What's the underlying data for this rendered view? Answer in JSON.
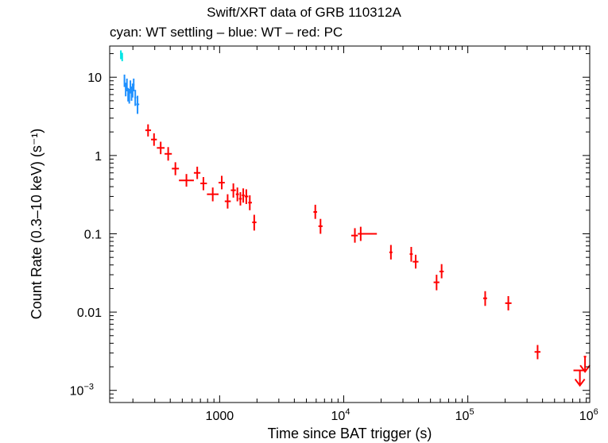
{
  "chart_data": {
    "type": "scatter",
    "title": "Swift/XRT data of GRB 110312A",
    "subtitle": "cyan: WT settling – blue: WT – red: PC",
    "xlabel": "Time since BAT trigger (s)",
    "ylabel": "Count Rate (0.3–10 keV) (s⁻¹)",
    "xscale": "log",
    "yscale": "log",
    "xlim": [
      130,
      960000
    ],
    "ylim": [
      0.0007,
      25
    ],
    "x_ticks": [
      {
        "value": 1000,
        "label": "1000",
        "sup": ""
      },
      {
        "value": 10000,
        "label": "10",
        "sup": "4"
      },
      {
        "value": 100000,
        "label": "10",
        "sup": "5"
      },
      {
        "value": 1000000,
        "label": "10",
        "sup": "6"
      }
    ],
    "y_ticks": [
      {
        "value": 0.001,
        "label": "10",
        "sup": "−3"
      },
      {
        "value": 0.01,
        "label": "0.01",
        "sup": ""
      },
      {
        "value": 0.1,
        "label": "0.1",
        "sup": ""
      },
      {
        "value": 1,
        "label": "1",
        "sup": ""
      },
      {
        "value": 10,
        "label": "10",
        "sup": ""
      }
    ],
    "series": [
      {
        "name": "WT settling",
        "color": "#00e5e5",
        "points": [
          {
            "x": 160,
            "xlo": 158,
            "xhi": 162,
            "y": 19.5,
            "ylo": 17,
            "yhi": 22
          },
          {
            "x": 164,
            "xlo": 162,
            "xhi": 166,
            "y": 18,
            "ylo": 16,
            "yhi": 20.5
          }
        ]
      },
      {
        "name": "WT",
        "color": "#1e90ff",
        "points": [
          {
            "x": 171,
            "xlo": 169,
            "xhi": 173,
            "y": 9.0,
            "ylo": 7.5,
            "yhi": 10.8
          },
          {
            "x": 175,
            "xlo": 173,
            "xhi": 177,
            "y": 7.0,
            "ylo": 5.7,
            "yhi": 8.5
          },
          {
            "x": 179,
            "xlo": 177,
            "xhi": 181,
            "y": 8.0,
            "ylo": 6.6,
            "yhi": 9.6
          },
          {
            "x": 183,
            "xlo": 181,
            "xhi": 185,
            "y": 6.0,
            "ylo": 4.9,
            "yhi": 7.3
          },
          {
            "x": 187,
            "xlo": 185,
            "xhi": 189,
            "y": 5.8,
            "ylo": 4.6,
            "yhi": 7.1
          },
          {
            "x": 191,
            "xlo": 189,
            "xhi": 193,
            "y": 7.5,
            "ylo": 6.2,
            "yhi": 9.1
          },
          {
            "x": 195,
            "xlo": 193,
            "xhi": 197,
            "y": 6.2,
            "ylo": 5.0,
            "yhi": 7.6
          },
          {
            "x": 199,
            "xlo": 197,
            "xhi": 201,
            "y": 6.8,
            "ylo": 5.5,
            "yhi": 8.3
          },
          {
            "x": 203,
            "xlo": 201,
            "xhi": 206,
            "y": 8.0,
            "ylo": 6.6,
            "yhi": 9.6
          },
          {
            "x": 209,
            "xlo": 206,
            "xhi": 213,
            "y": 5.5,
            "ylo": 4.3,
            "yhi": 6.9
          },
          {
            "x": 218,
            "xlo": 213,
            "xhi": 225,
            "y": 4.5,
            "ylo": 3.4,
            "yhi": 5.8
          }
        ]
      },
      {
        "name": "PC",
        "color": "#ff0000",
        "points": [
          {
            "x": 265,
            "xlo": 252,
            "xhi": 280,
            "y": 2.1,
            "ylo": 1.75,
            "yhi": 2.5
          },
          {
            "x": 296,
            "xlo": 280,
            "xhi": 312,
            "y": 1.6,
            "ylo": 1.33,
            "yhi": 1.92
          },
          {
            "x": 335,
            "xlo": 312,
            "xhi": 360,
            "y": 1.25,
            "ylo": 1.04,
            "yhi": 1.5
          },
          {
            "x": 385,
            "xlo": 360,
            "xhi": 412,
            "y": 1.05,
            "ylo": 0.86,
            "yhi": 1.28
          },
          {
            "x": 440,
            "xlo": 412,
            "xhi": 470,
            "y": 0.68,
            "ylo": 0.56,
            "yhi": 0.82
          },
          {
            "x": 540,
            "xlo": 470,
            "xhi": 620,
            "y": 0.48,
            "ylo": 0.4,
            "yhi": 0.58
          },
          {
            "x": 660,
            "xlo": 620,
            "xhi": 700,
            "y": 0.6,
            "ylo": 0.5,
            "yhi": 0.72
          },
          {
            "x": 740,
            "xlo": 700,
            "xhi": 790,
            "y": 0.44,
            "ylo": 0.36,
            "yhi": 0.53
          },
          {
            "x": 880,
            "xlo": 790,
            "xhi": 980,
            "y": 0.32,
            "ylo": 0.26,
            "yhi": 0.39
          },
          {
            "x": 1040,
            "xlo": 980,
            "xhi": 1100,
            "y": 0.45,
            "ylo": 0.37,
            "yhi": 0.55
          },
          {
            "x": 1160,
            "xlo": 1100,
            "xhi": 1230,
            "y": 0.26,
            "ylo": 0.21,
            "yhi": 0.32
          },
          {
            "x": 1290,
            "xlo": 1230,
            "xhi": 1350,
            "y": 0.36,
            "ylo": 0.29,
            "yhi": 0.44
          },
          {
            "x": 1390,
            "xlo": 1350,
            "xhi": 1430,
            "y": 0.32,
            "ylo": 0.26,
            "yhi": 0.39
          },
          {
            "x": 1470,
            "xlo": 1430,
            "xhi": 1510,
            "y": 0.28,
            "ylo": 0.23,
            "yhi": 0.34
          },
          {
            "x": 1550,
            "xlo": 1510,
            "xhi": 1590,
            "y": 0.31,
            "ylo": 0.25,
            "yhi": 0.38
          },
          {
            "x": 1640,
            "xlo": 1590,
            "xhi": 1700,
            "y": 0.3,
            "ylo": 0.24,
            "yhi": 0.37
          },
          {
            "x": 1750,
            "xlo": 1700,
            "xhi": 1820,
            "y": 0.25,
            "ylo": 0.2,
            "yhi": 0.31
          },
          {
            "x": 1900,
            "xlo": 1830,
            "xhi": 1980,
            "y": 0.14,
            "ylo": 0.11,
            "yhi": 0.175
          },
          {
            "x": 5900,
            "xlo": 5700,
            "xhi": 6100,
            "y": 0.19,
            "ylo": 0.155,
            "yhi": 0.235
          },
          {
            "x": 6500,
            "xlo": 6250,
            "xhi": 6750,
            "y": 0.125,
            "ylo": 0.1,
            "yhi": 0.155
          },
          {
            "x": 12300,
            "xlo": 11500,
            "xhi": 13000,
            "y": 0.095,
            "ylo": 0.077,
            "yhi": 0.118
          },
          {
            "x": 13700,
            "xlo": 13000,
            "xhi": 18500,
            "y": 0.1,
            "ylo": 0.081,
            "yhi": 0.123
          },
          {
            "x": 24000,
            "xlo": 23300,
            "xhi": 24700,
            "y": 0.058,
            "ylo": 0.047,
            "yhi": 0.072
          },
          {
            "x": 35000,
            "xlo": 34000,
            "xhi": 36000,
            "y": 0.055,
            "ylo": 0.044,
            "yhi": 0.068
          },
          {
            "x": 38000,
            "xlo": 36000,
            "xhi": 40000,
            "y": 0.044,
            "ylo": 0.036,
            "yhi": 0.054
          },
          {
            "x": 56000,
            "xlo": 53000,
            "xhi": 59000,
            "y": 0.024,
            "ylo": 0.019,
            "yhi": 0.03
          },
          {
            "x": 61500,
            "xlo": 59000,
            "xhi": 64000,
            "y": 0.033,
            "ylo": 0.027,
            "yhi": 0.041
          },
          {
            "x": 138000,
            "xlo": 133000,
            "xhi": 143000,
            "y": 0.015,
            "ylo": 0.012,
            "yhi": 0.0185
          },
          {
            "x": 212000,
            "xlo": 200000,
            "xhi": 225000,
            "y": 0.013,
            "ylo": 0.0105,
            "yhi": 0.016
          },
          {
            "x": 365000,
            "xlo": 345000,
            "xhi": 385000,
            "y": 0.0031,
            "ylo": 0.0025,
            "yhi": 0.0038
          }
        ]
      }
    ],
    "upper_limits": [
      {
        "series": "PC",
        "color": "#ff0000",
        "x": 800000,
        "xlo": 710000,
        "xhi": 880000,
        "y": 0.0018
      },
      {
        "series": "PC",
        "color": "#ff0000",
        "x": 880000,
        "xlo": 860000,
        "xhi": 900000,
        "y": 0.0027
      }
    ]
  }
}
